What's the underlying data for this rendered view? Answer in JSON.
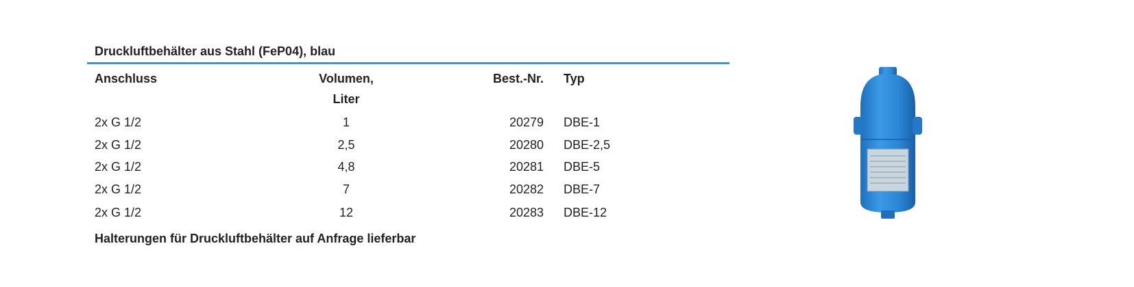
{
  "title": "Druckluftbehälter aus Stahl (FeP04), blau",
  "accent_color": "#1aa3dc",
  "table": {
    "headers": {
      "anschluss": "Anschluss",
      "volumen": "Volumen,",
      "volumen_unit": "Liter",
      "best_nr": "Best.-Nr.",
      "typ": "Typ"
    },
    "rows": [
      {
        "anschluss": "2x G 1/2",
        "volumen": "1",
        "best_nr": "20279",
        "typ": "DBE-1"
      },
      {
        "anschluss": "2x G 1/2",
        "volumen": "2,5",
        "best_nr": "20280",
        "typ": "DBE-2,5"
      },
      {
        "anschluss": "2x G 1/2",
        "volumen": "4,8",
        "best_nr": "20281",
        "typ": "DBE-5"
      },
      {
        "anschluss": "2x G 1/2",
        "volumen": "7",
        "best_nr": "20282",
        "typ": "DBE-7"
      },
      {
        "anschluss": "2x G 1/2",
        "volumen": "12",
        "best_nr": "20283",
        "typ": "DBE-12"
      }
    ]
  },
  "footer": "Halterungen für Druckluftbehälter auf Anfrage lieferbar",
  "product_image": {
    "subject": "blue-compressed-air-tank",
    "color": "#2a8fd6"
  }
}
